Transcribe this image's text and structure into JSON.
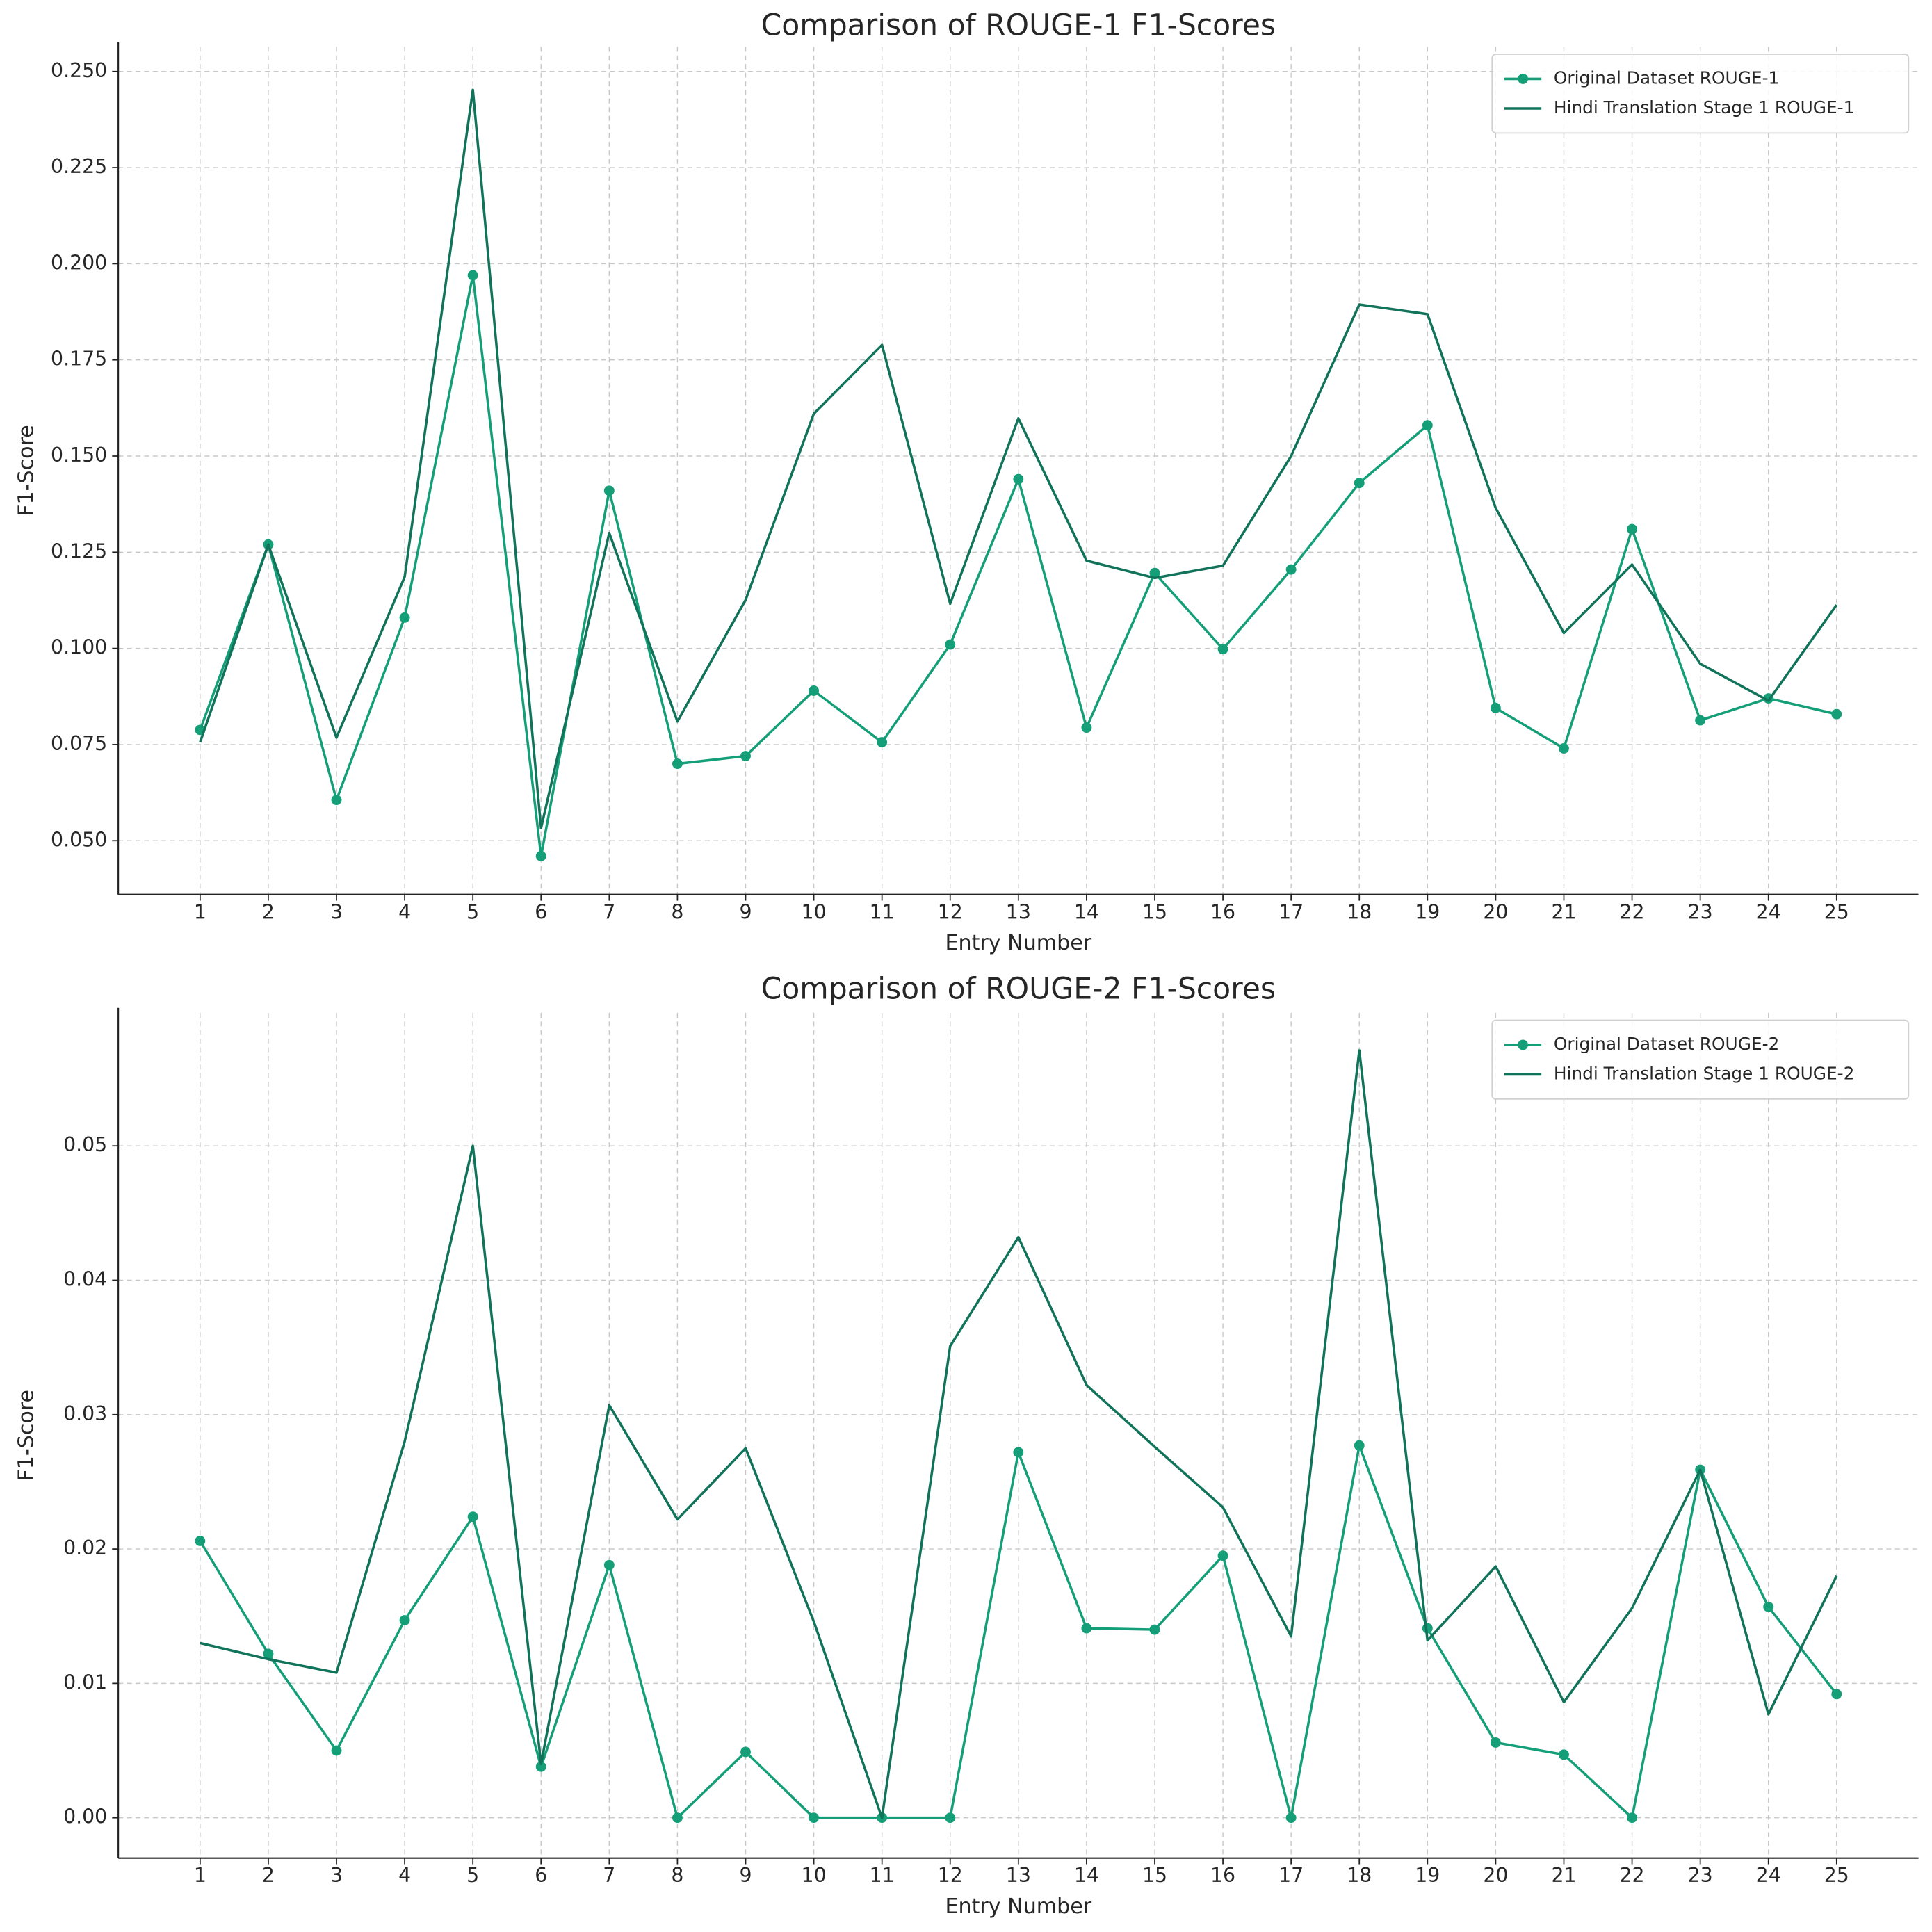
{
  "chart_data": [
    {
      "type": "line",
      "title": "Comparison of ROUGE-1 F1-Scores",
      "x_label": "Entry Number",
      "y_label": "F1-Score",
      "x": [
        1,
        2,
        3,
        4,
        5,
        6,
        7,
        8,
        9,
        10,
        11,
        12,
        13,
        14,
        15,
        16,
        17,
        18,
        19,
        20,
        21,
        22,
        23,
        24,
        25
      ],
      "xlim": [
        -0.2,
        26.2
      ],
      "xticks": [
        1,
        2,
        3,
        4,
        5,
        6,
        7,
        8,
        9,
        10,
        11,
        12,
        13,
        14,
        15,
        16,
        17,
        18,
        19,
        20,
        21,
        22,
        23,
        24,
        25
      ],
      "ylim": [
        0.036,
        0.2564
      ],
      "yticks": [
        {
          "value": 0.05,
          "label": "0.050"
        },
        {
          "value": 0.075,
          "label": "0.075"
        },
        {
          "value": 0.1,
          "label": "0.100"
        },
        {
          "value": 0.125,
          "label": "0.125"
        },
        {
          "value": 0.15,
          "label": "0.150"
        },
        {
          "value": 0.175,
          "label": "0.175"
        },
        {
          "value": 0.2,
          "label": "0.200"
        },
        {
          "value": 0.225,
          "label": "0.225"
        },
        {
          "value": 0.25,
          "label": "0.250"
        }
      ],
      "grid": true,
      "legend": "upper right",
      "series": [
        {
          "name": "Original Dataset ROUGE-1",
          "color": "#159f78",
          "markers": true,
          "values": [
            0.0788,
            0.127,
            0.0606,
            0.108,
            0.197,
            0.046,
            0.141,
            0.07,
            0.072,
            0.089,
            0.0756,
            0.101,
            0.144,
            0.0794,
            0.1196,
            0.0998,
            0.1205,
            0.143,
            0.158,
            0.0845,
            0.074,
            0.131,
            0.0813,
            0.087,
            0.0829
          ]
        },
        {
          "name": "Hindi Translation Stage 1 ROUGE-1",
          "color": "#10735a",
          "markers": false,
          "values": [
            0.0756,
            0.127,
            0.0768,
            0.1186,
            0.2452,
            0.0533,
            0.13,
            0.081,
            0.1126,
            0.161,
            0.1789,
            0.1116,
            0.1598,
            0.1228,
            0.1183,
            0.1215,
            0.15,
            0.1894,
            0.1869,
            0.1365,
            0.104,
            0.1218,
            0.096,
            0.0864,
            0.1113
          ]
        }
      ]
    },
    {
      "type": "line",
      "title": "Comparison of ROUGE-2 F1-Scores",
      "x_label": "Entry Number",
      "y_label": "F1-Score",
      "x": [
        1,
        2,
        3,
        4,
        5,
        6,
        7,
        8,
        9,
        10,
        11,
        12,
        13,
        14,
        15,
        16,
        17,
        18,
        19,
        20,
        21,
        22,
        23,
        24,
        25
      ],
      "xlim": [
        -0.2,
        26.2
      ],
      "xticks": [
        1,
        2,
        3,
        4,
        5,
        6,
        7,
        8,
        9,
        10,
        11,
        12,
        13,
        14,
        15,
        16,
        17,
        18,
        19,
        20,
        21,
        22,
        23,
        24,
        25
      ],
      "ylim": [
        -0.003,
        0.0599
      ],
      "yticks": [
        {
          "value": 0,
          "label": "0.00"
        },
        {
          "value": 0.01,
          "label": "0.01"
        },
        {
          "value": 0.02,
          "label": "0.02"
        },
        {
          "value": 0.03,
          "label": "0.03"
        },
        {
          "value": 0.04,
          "label": "0.04"
        },
        {
          "value": 0.05,
          "label": "0.05"
        }
      ],
      "grid": true,
      "legend": "upper right",
      "series": [
        {
          "name": "Original Dataset ROUGE-2",
          "color": "#159f78",
          "markers": true,
          "values": [
            0.0206,
            0.0122,
            0.005,
            0.0147,
            0.0224,
            0.0038,
            0.0188,
            0,
            0.0049,
            0,
            0,
            0,
            0.0272,
            0.0141,
            0.014,
            0.0195,
            0,
            0.0277,
            0.0141,
            0.0056,
            0.0047,
            0,
            0.0259,
            0.0157,
            0.0092
          ]
        },
        {
          "name": "Hindi Translation Stage 1 ROUGE-2",
          "color": "#10735a",
          "markers": false,
          "values": [
            0.013,
            0.0118,
            0.0108,
            0.028,
            0.05,
            0.004,
            0.0307,
            0.0222,
            0.0275,
            0.0146,
            0,
            0.0351,
            0.0432,
            0.0322,
            0.0276,
            0.0231,
            0.0135,
            0.0571,
            0.0132,
            0.0187,
            0.0086,
            0.0156,
            0.0259,
            0.0077,
            0.018
          ]
        }
      ]
    }
  ]
}
